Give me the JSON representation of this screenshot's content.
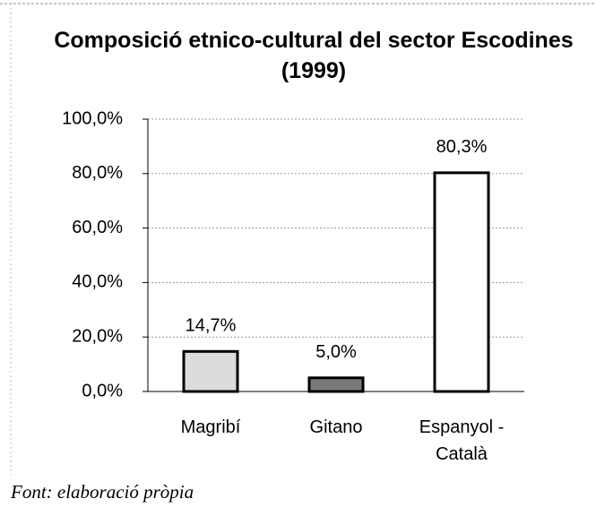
{
  "chart_data": {
    "type": "bar",
    "title": "Composició etnico-cultural del sector Escodines (1999)",
    "categories": [
      "Magribí",
      "Gitano",
      "Espanyol - Català"
    ],
    "values": [
      14.7,
      5.0,
      80.3
    ],
    "value_labels": [
      "14,7%",
      "5,0%",
      "80,3%"
    ],
    "colors": [
      "#dcdcdc",
      "#7a7a7a",
      "#ffffff"
    ],
    "ylim": [
      0,
      100
    ],
    "yticks": [
      {
        "value": 0,
        "label": "0,0%"
      },
      {
        "value": 20,
        "label": "20,0%"
      },
      {
        "value": 40,
        "label": "40,0%"
      },
      {
        "value": 60,
        "label": "60,0%"
      },
      {
        "value": 80,
        "label": "80,0%"
      },
      {
        "value": 100,
        "label": "100,0%"
      }
    ],
    "grid": true,
    "source": "Font: elaboració pròpia"
  }
}
